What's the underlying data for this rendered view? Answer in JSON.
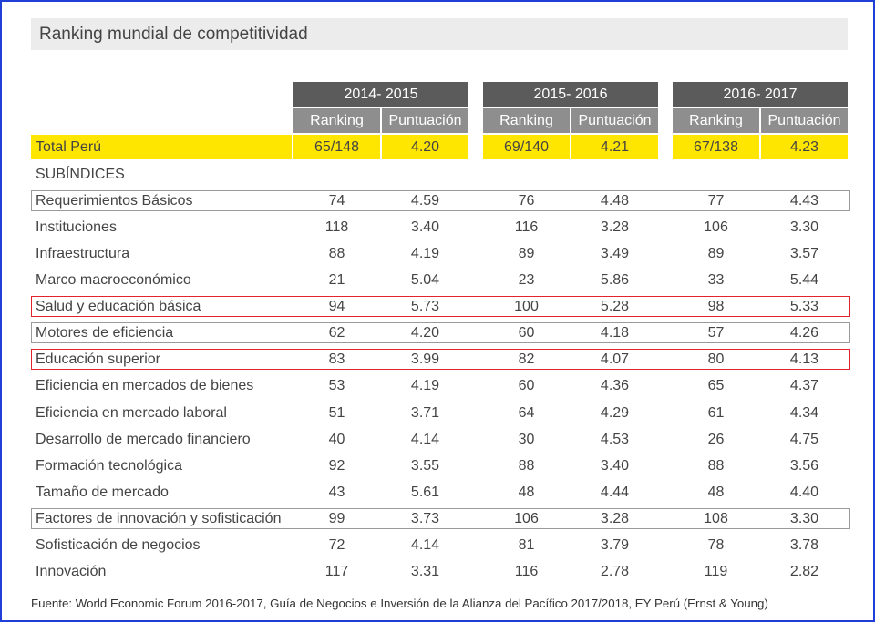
{
  "title": "Ranking mundial de competitividad",
  "periods": [
    "2014- 2015",
    "2015- 2016",
    "2016- 2017"
  ],
  "column_labels": {
    "ranking": "Ranking",
    "score": "Puntuación"
  },
  "total": {
    "label": "Total Perú",
    "values": [
      "65/148",
      "4.20",
      "69/140",
      "4.21",
      "67/138",
      "4.23"
    ]
  },
  "section_label": "SUBÍNDICES",
  "rows": [
    {
      "label": "Requerimientos Básicos",
      "values": [
        "74",
        "4.59",
        "76",
        "4.48",
        "77",
        "4.43"
      ],
      "highlight": "gray"
    },
    {
      "label": "Instituciones",
      "values": [
        "118",
        "3.40",
        "116",
        "3.28",
        "106",
        "3.30"
      ],
      "highlight": "none"
    },
    {
      "label": "Infraestructura",
      "values": [
        "88",
        "4.19",
        "89",
        "3.49",
        "89",
        "3.57"
      ],
      "highlight": "none"
    },
    {
      "label": "Marco macroeconómico",
      "values": [
        "21",
        "5.04",
        "23",
        "5.86",
        "33",
        "5.44"
      ],
      "highlight": "none"
    },
    {
      "label": "Salud y educación básica",
      "values": [
        "94",
        "5.73",
        "100",
        "5.28",
        "98",
        "5.33"
      ],
      "highlight": "red"
    },
    {
      "label": "Motores de eficiencia",
      "values": [
        "62",
        "4.20",
        "60",
        "4.18",
        "57",
        "4.26"
      ],
      "highlight": "gray"
    },
    {
      "label": "Educación superior",
      "values": [
        "83",
        "3.99",
        "82",
        "4.07",
        "80",
        "4.13"
      ],
      "highlight": "red"
    },
    {
      "label": "Eficiencia en mercados de bienes",
      "values": [
        "53",
        "4.19",
        "60",
        "4.36",
        "65",
        "4.37"
      ],
      "highlight": "none"
    },
    {
      "label": "Eficiencia en mercado laboral",
      "values": [
        "51",
        "3.71",
        "64",
        "4.29",
        "61",
        "4.34"
      ],
      "highlight": "none"
    },
    {
      "label": "Desarrollo de mercado financiero",
      "values": [
        "40",
        "4.14",
        "30",
        "4.53",
        "26",
        "4.75"
      ],
      "highlight": "none"
    },
    {
      "label": "Formación tecnológica",
      "values": [
        "92",
        "3.55",
        "88",
        "3.40",
        "88",
        "3.56"
      ],
      "highlight": "none"
    },
    {
      "label": "Tamaño de mercado",
      "values": [
        "43",
        "5.61",
        "48",
        "4.44",
        "48",
        "4.40"
      ],
      "highlight": "none"
    },
    {
      "label": "Factores de innovación y sofisticación",
      "values": [
        "99",
        "3.73",
        "106",
        "3.28",
        "108",
        "3.30"
      ],
      "highlight": "gray"
    },
    {
      "label": "Sofisticación de negocios",
      "values": [
        "72",
        "4.14",
        "81",
        "3.79",
        "78",
        "3.78"
      ],
      "highlight": "none"
    },
    {
      "label": "Innovación",
      "values": [
        "117",
        "3.31",
        "116",
        "2.78",
        "119",
        "2.82"
      ],
      "highlight": "none"
    }
  ],
  "source": "Fuente: World Economic Forum 2016-2017, Guía de Negocios e Inversión de la Alianza del Pacífico 2017/2018, EY Perú (Ernst & Young)",
  "colors": {
    "frame": "#1f3fd6",
    "year_header": "#5b5b5b",
    "column_header": "#8e8e8e",
    "total_row": "#ffe600",
    "highlight_red": "#e0262c",
    "highlight_gray": "#9a9a9a"
  }
}
